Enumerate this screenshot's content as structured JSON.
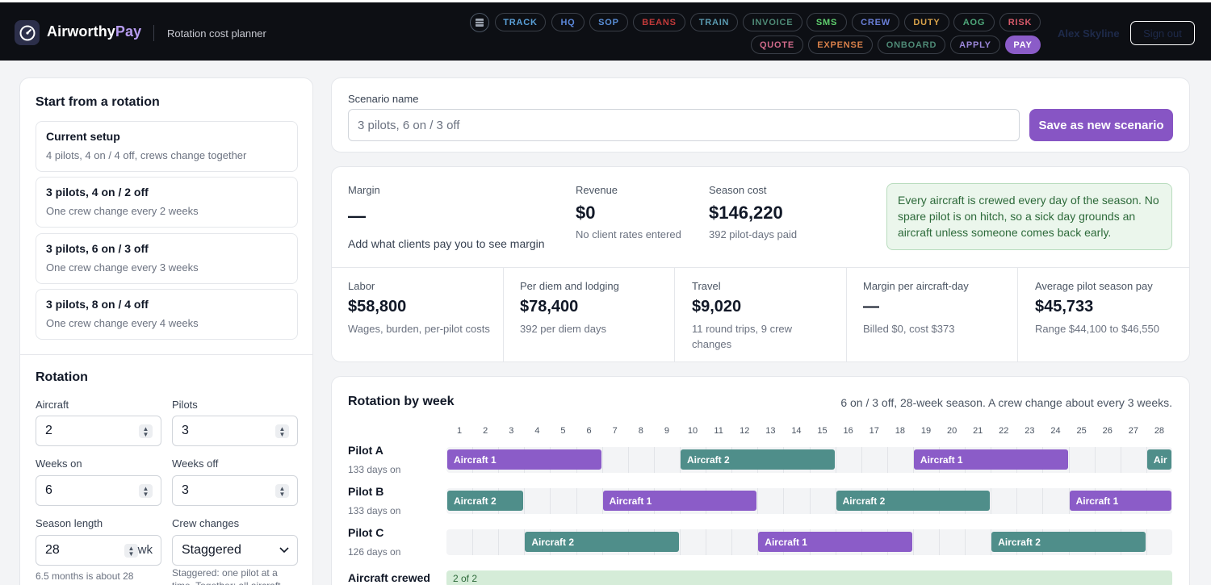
{
  "header": {
    "brand_main": "Airworthy",
    "brand_accent": "Pay",
    "subtitle": "Rotation cost planner",
    "nav": [
      {
        "label": "TRACK",
        "color": "#5aa0d8"
      },
      {
        "label": "HQ",
        "color": "#5a86d8"
      },
      {
        "label": "SOP",
        "color": "#5a8fd8"
      },
      {
        "label": "BEANS",
        "color": "#c23a3a"
      },
      {
        "label": "TRAIN",
        "color": "#5a9ab0"
      },
      {
        "label": "INVOICE",
        "color": "#4e8a76"
      },
      {
        "label": "SMS",
        "color": "#5fcf6e"
      },
      {
        "label": "CREW",
        "color": "#6a7fd8"
      },
      {
        "label": "DUTY",
        "color": "#d8a24a"
      },
      {
        "label": "AOG",
        "color": "#4ea77a"
      },
      {
        "label": "RISK",
        "color": "#d85a6a"
      },
      {
        "label": "QUOTE",
        "color": "#d06a8a"
      },
      {
        "label": "EXPENSE",
        "color": "#d8804a"
      },
      {
        "label": "ONBOARD",
        "color": "#4e8a76"
      },
      {
        "label": "APPLY",
        "color": "#9a86d8"
      },
      {
        "label": "PAY",
        "color": "#ffffff"
      }
    ],
    "active_nav": "PAY",
    "user": "Alex Skyline",
    "signout": "Sign out"
  },
  "sidebar": {
    "start_title": "Start from a rotation",
    "presets": [
      {
        "title": "Current setup",
        "desc": "4 pilots, 4 on / 4 off, crews change together"
      },
      {
        "title": "3 pilots, 4 on / 2 off",
        "desc": "One crew change every 2 weeks"
      },
      {
        "title": "3 pilots, 6 on / 3 off",
        "desc": "One crew change every 3 weeks"
      },
      {
        "title": "3 pilots, 8 on / 4 off",
        "desc": "One crew change every 4 weeks"
      }
    ],
    "rotation_title": "Rotation",
    "fields": {
      "aircraft": {
        "label": "Aircraft",
        "value": "2"
      },
      "pilots": {
        "label": "Pilots",
        "value": "3"
      },
      "weeks_on": {
        "label": "Weeks on",
        "value": "6"
      },
      "weeks_off": {
        "label": "Weeks off",
        "value": "3"
      },
      "season_length": {
        "label": "Season length",
        "value": "28",
        "unit": "wk",
        "hint": "6.5 months is about 28"
      },
      "crew_changes": {
        "label": "Crew changes",
        "value": "Staggered",
        "hint": "Staggered: one pilot at a time. Together: all aircraft"
      }
    }
  },
  "scenario": {
    "label": "Scenario name",
    "value": "3 pilots, 6 on / 3 off",
    "save_label": "Save as new scenario"
  },
  "summary": {
    "margin": {
      "label": "Margin",
      "value": "—",
      "note": "Add what clients pay you to see margin"
    },
    "revenue": {
      "label": "Revenue",
      "value": "$0",
      "note": "No client rates entered"
    },
    "season_cost": {
      "label": "Season cost",
      "value": "$146,220",
      "note": "392 pilot-days paid"
    },
    "callout": "Every aircraft is crewed every day of the season. No spare pilot is on hitch, so a sick day grounds an aircraft unless someone comes back early.",
    "metrics": [
      {
        "label": "Labor",
        "value": "$58,800",
        "note": "Wages, burden, per-pilot costs"
      },
      {
        "label": "Per diem and lodging",
        "value": "$78,400",
        "note": "392 per diem days"
      },
      {
        "label": "Travel",
        "value": "$9,020",
        "note": "11 round trips, 9 crew changes"
      },
      {
        "label": "Margin per aircraft-day",
        "value": "—",
        "note": "Billed $0, cost $373"
      },
      {
        "label": "Average pilot season pay",
        "value": "$45,733",
        "note": "Range $44,100 to $46,550"
      }
    ]
  },
  "rotation": {
    "title": "Rotation by week",
    "description": "6 on / 3 off, 28-week season. A crew change about every 3 weeks.",
    "weeks": [
      "1",
      "2",
      "3",
      "4",
      "5",
      "6",
      "7",
      "8",
      "9",
      "10",
      "11",
      "12",
      "13",
      "14",
      "15",
      "16",
      "17",
      "18",
      "19",
      "20",
      "21",
      "22",
      "23",
      "24",
      "25",
      "26",
      "27",
      "28"
    ],
    "pilots": [
      {
        "name": "Pilot A",
        "days": "133 days on",
        "hitches": [
          {
            "label": "Aircraft 1",
            "aircraft": 1,
            "start_week": 1,
            "weeks": 6
          },
          {
            "label": "Aircraft 2",
            "aircraft": 2,
            "start_week": 10,
            "weeks": 6
          },
          {
            "label": "Aircraft 1",
            "aircraft": 1,
            "start_week": 19,
            "weeks": 6
          },
          {
            "label": "Air",
            "aircraft": 2,
            "start_week": 28,
            "weeks": 1
          }
        ]
      },
      {
        "name": "Pilot B",
        "days": "133 days on",
        "hitches": [
          {
            "label": "Aircraft 2",
            "aircraft": 2,
            "start_week": 1,
            "weeks": 3
          },
          {
            "label": "Aircraft 1",
            "aircraft": 1,
            "start_week": 7,
            "weeks": 6
          },
          {
            "label": "Aircraft 2",
            "aircraft": 2,
            "start_week": 16,
            "weeks": 6
          },
          {
            "label": "Aircraft 1",
            "aircraft": 1,
            "start_week": 25,
            "weeks": 4
          }
        ]
      },
      {
        "name": "Pilot C",
        "days": "126 days on",
        "hitches": [
          {
            "label": "Aircraft 2",
            "aircraft": 2,
            "start_week": 4,
            "weeks": 6
          },
          {
            "label": "Aircraft 1",
            "aircraft": 1,
            "start_week": 13,
            "weeks": 6
          },
          {
            "label": "Aircraft 2",
            "aircraft": 2,
            "start_week": 22,
            "weeks": 6
          }
        ]
      }
    ],
    "crewed_label": "Aircraft crewed",
    "crewed_value": "2 of 2"
  }
}
